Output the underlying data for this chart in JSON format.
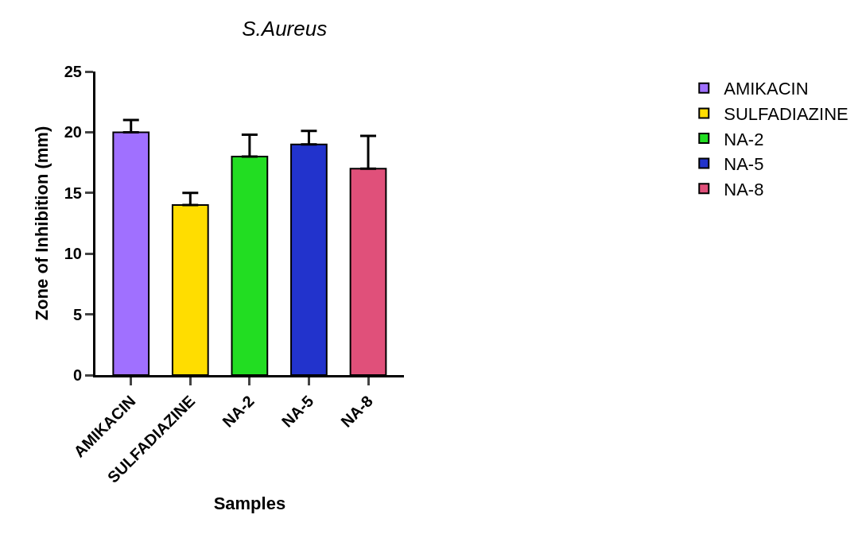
{
  "chart_data": {
    "type": "bar",
    "title": "S.Aureus",
    "xlabel": "Samples",
    "ylabel": "Zone of Inhibition (mm)",
    "categories": [
      "AMIKACIN",
      "SULFADIAZINE",
      "NA-2",
      "NA-5",
      "NA-8"
    ],
    "series": [
      {
        "name": "AMIKACIN",
        "color": "#a070ff",
        "values": [
          20,
          null,
          null,
          null,
          null
        ],
        "errors": [
          [
            20,
            21.0
          ],
          null,
          null,
          null,
          null
        ]
      },
      {
        "name": "SULFADIAZINE",
        "color": "#ffdd00",
        "values": [
          null,
          14,
          null,
          null,
          null
        ],
        "errors": [
          null,
          [
            14,
            15.0
          ],
          null,
          null,
          null
        ]
      },
      {
        "name": "NA-2",
        "color": "#22dd22",
        "values": [
          null,
          null,
          18,
          null,
          null
        ],
        "errors": [
          null,
          null,
          [
            18,
            19.8
          ],
          null,
          null
        ]
      },
      {
        "name": "NA-5",
        "color": "#2233cc",
        "values": [
          null,
          null,
          null,
          19,
          null
        ],
        "errors": [
          null,
          null,
          null,
          [
            19,
            20.1
          ],
          null
        ]
      },
      {
        "name": "NA-8",
        "color": "#e0507a",
        "values": [
          null,
          null,
          null,
          null,
          17
        ],
        "errors": [
          null,
          null,
          null,
          null,
          [
            17,
            19.7
          ]
        ]
      }
    ],
    "ylim": [
      0,
      25
    ],
    "yticks": [
      0,
      5,
      10,
      15,
      20,
      25
    ],
    "grid": false,
    "legend": "right"
  }
}
